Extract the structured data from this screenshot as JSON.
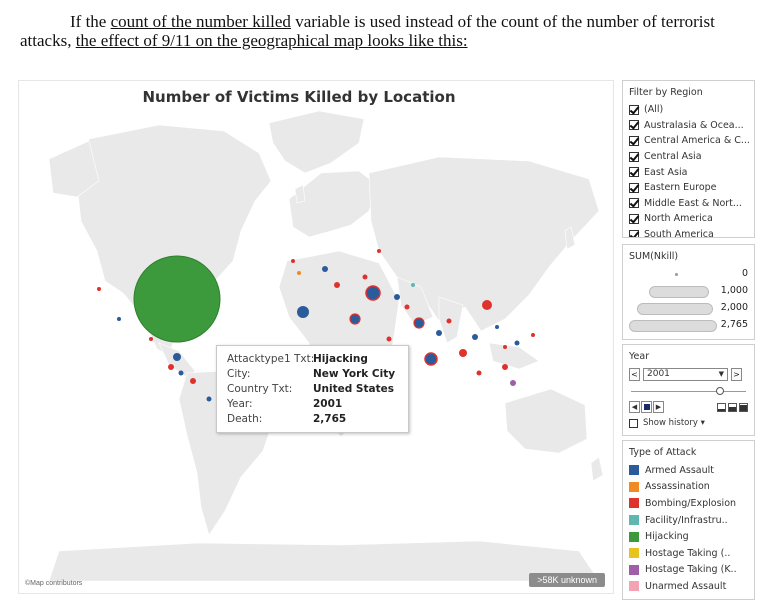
{
  "intro": {
    "text_before": "If the ",
    "underlined1": "count of the number killed",
    "text_middle": " variable is used instead of the count of the number of terrorist attacks, ",
    "underlined2": "the effect of 9/11 on the geographical map looks like this:"
  },
  "map": {
    "title": "Number of Victims Killed by Location",
    "attribution": "©Map contributors",
    "unknown_badge": ">58K unknown"
  },
  "tooltip": {
    "rows": [
      {
        "key": "Attacktype1 Txt:",
        "value": "Hijacking"
      },
      {
        "key": "City:",
        "value": "New York City"
      },
      {
        "key": "Country Txt:",
        "value": "United States"
      },
      {
        "key": "Year:",
        "value": "2001"
      },
      {
        "key": "Death:",
        "value": "2,765"
      }
    ]
  },
  "filter": {
    "title": "Filter by Region",
    "items": [
      {
        "label": "(All)",
        "checked": true
      },
      {
        "label": "Australasia & Ocea...",
        "checked": true
      },
      {
        "label": "Central America & C...",
        "checked": true
      },
      {
        "label": "Central Asia",
        "checked": true
      },
      {
        "label": "East Asia",
        "checked": true
      },
      {
        "label": "Eastern Europe",
        "checked": true
      },
      {
        "label": "Middle East & Nort...",
        "checked": true
      },
      {
        "label": "North America",
        "checked": true
      },
      {
        "label": "South America",
        "checked": true
      }
    ]
  },
  "size_legend": {
    "title": "SUM(Nkill)",
    "items": [
      "0",
      "1,000",
      "2,000",
      "2,765"
    ]
  },
  "year": {
    "title": "Year",
    "selected": "2001",
    "prev": "<",
    "next": ">",
    "slider_fraction": 0.78,
    "show_history": "Show history ▾"
  },
  "attack_legend": {
    "title": "Type of Attack",
    "items": [
      {
        "label": "Armed Assault",
        "color": "#2a5b9b"
      },
      {
        "label": "Assassination",
        "color": "#f08a24"
      },
      {
        "label": "Bombing/Explosion",
        "color": "#e0322d"
      },
      {
        "label": "Facility/Infrastru..",
        "color": "#5fb7b0"
      },
      {
        "label": "Hijacking",
        "color": "#3d9a3c"
      },
      {
        "label": "Hostage Taking (..",
        "color": "#e8c21e"
      },
      {
        "label": "Hostage Taking (K..",
        "color": "#a05ea8"
      },
      {
        "label": "Unarmed Assault",
        "color": "#f4a3b4"
      }
    ]
  }
}
